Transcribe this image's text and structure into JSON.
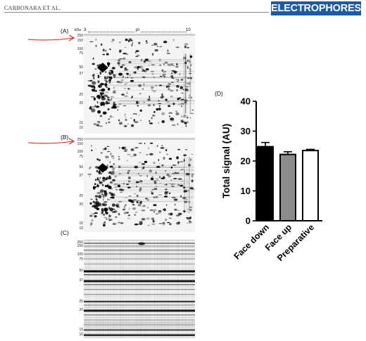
{
  "header": {
    "running_head": "CARBONARA ET AL.",
    "journal": "ELECTROPHORESIS"
  },
  "panels": {
    "A": {
      "label": "(A)",
      "kda_label": "kDa",
      "ph_start": "3",
      "pi_label": "pI",
      "ph_end": "10",
      "mw_markers": [
        "250",
        "150",
        "100",
        "75",
        "50",
        "37",
        "25",
        "20",
        "15",
        "10"
      ]
    },
    "B": {
      "label": "(B)",
      "mw_markers": [
        "250",
        "150",
        "100",
        "75",
        "50",
        "37",
        "25",
        "20",
        "15",
        "10"
      ]
    },
    "C": {
      "label": "(C)",
      "mw_markers": [
        "250",
        "150",
        "100",
        "75",
        "50",
        "37",
        "25",
        "20",
        "15",
        "10"
      ]
    },
    "D": {
      "label": "(D)"
    }
  },
  "colors": {
    "annotation_arrow": "#d62020",
    "journal_badge": "#1a5aa6"
  },
  "chart_data": {
    "type": "bar",
    "categories": [
      "Face down",
      "Face up",
      "Preparative"
    ],
    "values": [
      24.8,
      22.2,
      23.5
    ],
    "errors": [
      1.4,
      0.9,
      0.4
    ],
    "bar_fills": [
      "#000000",
      "#8c8c8c",
      "#ffffff"
    ],
    "ylabel": "Total signal (AU)",
    "xlabel": "",
    "ylim": [
      0,
      40
    ],
    "yticks": [
      "0",
      "10",
      "20",
      "30",
      "40"
    ],
    "grid": false
  }
}
